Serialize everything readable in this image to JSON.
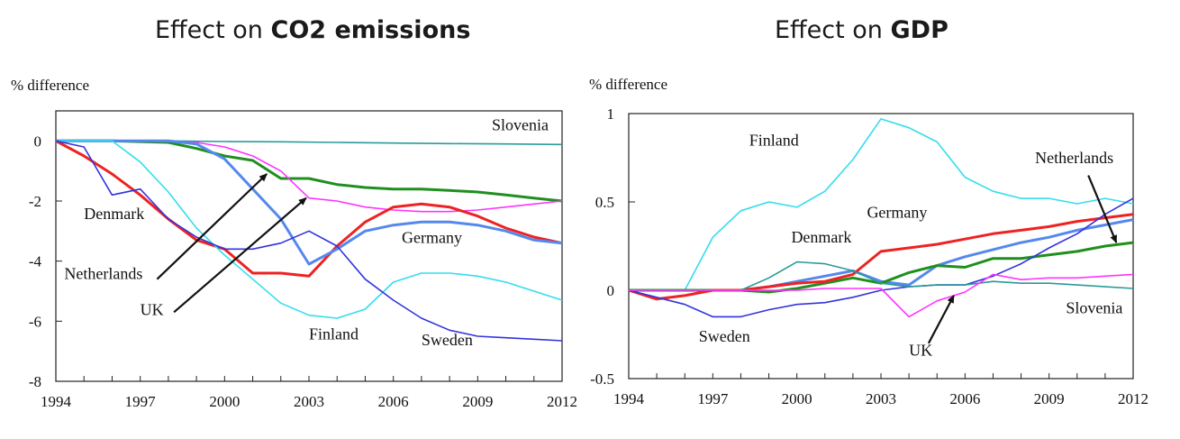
{
  "chart_data": [
    {
      "type": "line",
      "title_prefix": "Effect on ",
      "title_bold": "CO2 emissions",
      "ylabel": "% difference",
      "xlabel": "",
      "xlim": [
        1994,
        2012
      ],
      "ylim": [
        -8,
        1
      ],
      "x_ticks": [
        1994,
        1997,
        2000,
        2003,
        2006,
        2009,
        2012
      ],
      "y_ticks": [
        0,
        -2,
        -4,
        -6,
        -8
      ],
      "grid": false,
      "series": [
        {
          "name": "Slovenia",
          "color": "#2a9a9a",
          "x": [
            1994,
            1996,
            1998,
            2000,
            2002,
            2004,
            2006,
            2008,
            2010,
            2012
          ],
          "y": [
            0,
            0,
            0,
            -0.02,
            -0.03,
            -0.05,
            -0.07,
            -0.09,
            -0.1,
            -0.12
          ]
        },
        {
          "name": "Germany",
          "color": "#1f8f1f",
          "x": [
            1994,
            1996,
            1998,
            1999,
            2000,
            2001,
            2002,
            2003,
            2004,
            2005,
            2006,
            2007,
            2008,
            2009,
            2010,
            2011,
            2012
          ],
          "y": [
            0,
            0,
            -0.05,
            -0.25,
            -0.5,
            -0.65,
            -1.25,
            -1.25,
            -1.45,
            -1.55,
            -1.6,
            -1.6,
            -1.65,
            -1.7,
            -1.8,
            -1.9,
            -2.0
          ]
        },
        {
          "name": "UK",
          "color": "#ff33ff",
          "x": [
            1994,
            1998,
            1999,
            2000,
            2001,
            2002,
            2003,
            2004,
            2005,
            2006,
            2007,
            2008,
            2009,
            2010,
            2011,
            2012
          ],
          "y": [
            0,
            -0.02,
            -0.05,
            -0.2,
            -0.5,
            -1.0,
            -1.9,
            -2.0,
            -2.2,
            -2.3,
            -2.35,
            -2.35,
            -2.3,
            -2.2,
            -2.1,
            -2.0
          ]
        },
        {
          "name": "Denmark",
          "color": "#ee2222",
          "x": [
            1994,
            1995,
            1996,
            1997,
            1998,
            1999,
            2000,
            2001,
            2002,
            2003,
            2004,
            2005,
            2006,
            2007,
            2008,
            2009,
            2010,
            2011,
            2012
          ],
          "y": [
            0,
            -0.5,
            -1.1,
            -1.8,
            -2.6,
            -3.3,
            -3.6,
            -4.4,
            -4.4,
            -4.5,
            -3.5,
            -2.7,
            -2.2,
            -2.1,
            -2.2,
            -2.5,
            -2.9,
            -3.2,
            -3.4
          ]
        },
        {
          "name": "Netherlands",
          "color": "#5588ee",
          "x": [
            1994,
            1995,
            1996,
            1997,
            1998,
            1999,
            2000,
            2001,
            2002,
            2003,
            2004,
            2005,
            2006,
            2007,
            2008,
            2009,
            2010,
            2011,
            2012
          ],
          "y": [
            0,
            0,
            0,
            0,
            0,
            -0.1,
            -0.6,
            -1.6,
            -2.6,
            -4.1,
            -3.6,
            -3.0,
            -2.8,
            -2.7,
            -2.7,
            -2.8,
            -3.0,
            -3.3,
            -3.4
          ]
        },
        {
          "name": "Finland",
          "color": "#33ddee",
          "x": [
            1994,
            1996,
            1997,
            1998,
            1999,
            2000,
            2001,
            2002,
            2003,
            2004,
            2005,
            2006,
            2007,
            2008,
            2009,
            2010,
            2011,
            2012
          ],
          "y": [
            0,
            0,
            -0.7,
            -1.7,
            -2.9,
            -3.8,
            -4.6,
            -5.4,
            -5.8,
            -5.9,
            -5.6,
            -4.7,
            -4.4,
            -4.4,
            -4.5,
            -4.7,
            -5.0,
            -5.3
          ]
        },
        {
          "name": "Sweden",
          "color": "#3333dd",
          "x": [
            1994,
            1995,
            1996,
            1997,
            1998,
            1999,
            2000,
            2001,
            2002,
            2003,
            2004,
            2005,
            2006,
            2007,
            2008,
            2009,
            2010,
            2011,
            2012
          ],
          "y": [
            0,
            -0.2,
            -1.8,
            -1.6,
            -2.6,
            -3.2,
            -3.6,
            -3.6,
            -3.4,
            -3.0,
            -3.5,
            -4.6,
            -5.3,
            -5.9,
            -6.3,
            -6.5,
            -6.55,
            -6.6,
            -6.65
          ]
        }
      ],
      "labels": [
        {
          "text": "Slovenia",
          "x": 2009.5,
          "y": 0.35
        },
        {
          "text": "Denmark",
          "x": 1995.0,
          "y": -2.6
        },
        {
          "text": "Germany",
          "x": 2006.3,
          "y": -3.4
        },
        {
          "text": "Netherlands",
          "x": 1994.3,
          "y": -4.6
        },
        {
          "text": "UK",
          "x": 1997.0,
          "y": -5.8
        },
        {
          "text": "Finland",
          "x": 2003.0,
          "y": -6.6
        },
        {
          "text": "Sweden",
          "x": 2007.0,
          "y": -6.8
        }
      ],
      "arrows": [
        {
          "from": [
            1997.6,
            -4.6
          ],
          "to": [
            2001.5,
            -1.1
          ]
        },
        {
          "from": [
            1998.2,
            -5.7
          ],
          "to": [
            2002.9,
            -1.9
          ]
        }
      ]
    },
    {
      "type": "line",
      "title_prefix": "Effect on ",
      "title_bold": "GDP",
      "ylabel": "% difference",
      "xlabel": "",
      "xlim": [
        1994,
        2012
      ],
      "ylim": [
        -0.5,
        1
      ],
      "x_ticks": [
        1994,
        1997,
        2000,
        2003,
        2006,
        2009,
        2012
      ],
      "y_ticks": [
        1,
        0.5,
        0,
        -0.5
      ],
      "grid": false,
      "series": [
        {
          "name": "Finland",
          "color": "#33ddee",
          "x": [
            1994,
            1996,
            1997,
            1998,
            1999,
            2000,
            2001,
            2002,
            2003,
            2004,
            2005,
            2006,
            2007,
            2008,
            2009,
            2010,
            2011,
            2012
          ],
          "y": [
            0,
            0,
            0.3,
            0.45,
            0.5,
            0.47,
            0.56,
            0.74,
            0.97,
            0.92,
            0.84,
            0.64,
            0.56,
            0.52,
            0.52,
            0.49,
            0.52,
            0.49
          ]
        },
        {
          "name": "Netherlands",
          "color": "#5588ee",
          "x": [
            1994,
            1998,
            1999,
            2000,
            2001,
            2002,
            2003,
            2004,
            2005,
            2006,
            2007,
            2008,
            2009,
            2010,
            2011,
            2012
          ],
          "y": [
            0,
            0,
            0.02,
            0.05,
            0.08,
            0.11,
            0.05,
            0.03,
            0.14,
            0.19,
            0.23,
            0.27,
            0.3,
            0.34,
            0.37,
            0.4
          ]
        },
        {
          "name": "Germany",
          "color": "#1f8f1f",
          "x": [
            1994,
            1998,
            1999,
            2000,
            2001,
            2002,
            2003,
            2004,
            2005,
            2006,
            2007,
            2008,
            2009,
            2010,
            2011,
            2012
          ],
          "y": [
            0,
            0,
            -0.01,
            0.01,
            0.04,
            0.07,
            0.04,
            0.1,
            0.14,
            0.13,
            0.18,
            0.18,
            0.2,
            0.22,
            0.25,
            0.27
          ]
        },
        {
          "name": "Denmark",
          "color": "#ee2222",
          "x": [
            1994,
            1995,
            1996,
            1997,
            1998,
            1999,
            2000,
            2001,
            2002,
            2003,
            2004,
            2005,
            2006,
            2007,
            2008,
            2009,
            2010,
            2011,
            2012
          ],
          "y": [
            0,
            -0.05,
            -0.03,
            0,
            0,
            0.02,
            0.04,
            0.05,
            0.09,
            0.22,
            0.24,
            0.26,
            0.29,
            0.32,
            0.34,
            0.36,
            0.39,
            0.41,
            0.43
          ]
        },
        {
          "name": "Sweden",
          "color": "#3333dd",
          "x": [
            1994,
            1995,
            1996,
            1997,
            1998,
            1999,
            2000,
            2001,
            2002,
            2003,
            2004,
            2005,
            2006,
            2007,
            2008,
            2009,
            2010,
            2011,
            2012
          ],
          "y": [
            0,
            -0.04,
            -0.08,
            -0.15,
            -0.15,
            -0.11,
            -0.08,
            -0.07,
            -0.04,
            0,
            0.02,
            0.03,
            0.03,
            0.08,
            0.15,
            0.24,
            0.32,
            0.43,
            0.52
          ]
        },
        {
          "name": "Slovenia",
          "color": "#2a9a9a",
          "x": [
            1994,
            1998,
            1999,
            2000,
            2001,
            2002,
            2003,
            2004,
            2005,
            2006,
            2007,
            2008,
            2009,
            2010,
            2011,
            2012
          ],
          "y": [
            0,
            0,
            0.07,
            0.16,
            0.15,
            0.11,
            0.04,
            0.02,
            0.03,
            0.03,
            0.05,
            0.04,
            0.04,
            0.03,
            0.02,
            0.01
          ]
        },
        {
          "name": "UK",
          "color": "#ff33ff",
          "x": [
            1994,
            1998,
            1999,
            2000,
            2001,
            2002,
            2003,
            2004,
            2005,
            2006,
            2007,
            2008,
            2009,
            2010,
            2011,
            2012
          ],
          "y": [
            0,
            0,
            0,
            0,
            0.01,
            0.01,
            0.01,
            -0.15,
            -0.06,
            -0.01,
            0.09,
            0.06,
            0.07,
            0.07,
            0.08,
            0.09
          ]
        }
      ],
      "labels": [
        {
          "text": "Finland",
          "x": 1998.3,
          "y": 0.82
        },
        {
          "text": "Netherlands",
          "x": 2008.5,
          "y": 0.72
        },
        {
          "text": "Germany",
          "x": 2002.5,
          "y": 0.41
        },
        {
          "text": "Denmark",
          "x": 1999.8,
          "y": 0.27
        },
        {
          "text": "Slovenia",
          "x": 2009.6,
          "y": -0.13
        },
        {
          "text": "Sweden",
          "x": 1996.5,
          "y": -0.29
        },
        {
          "text": "UK",
          "x": 2004.0,
          "y": -0.37
        }
      ],
      "arrows": [
        {
          "from": [
            2010.4,
            0.65
          ],
          "to": [
            2011.4,
            0.27
          ]
        },
        {
          "from": [
            2004.7,
            -0.3
          ],
          "to": [
            2005.6,
            -0.03
          ]
        }
      ]
    }
  ]
}
